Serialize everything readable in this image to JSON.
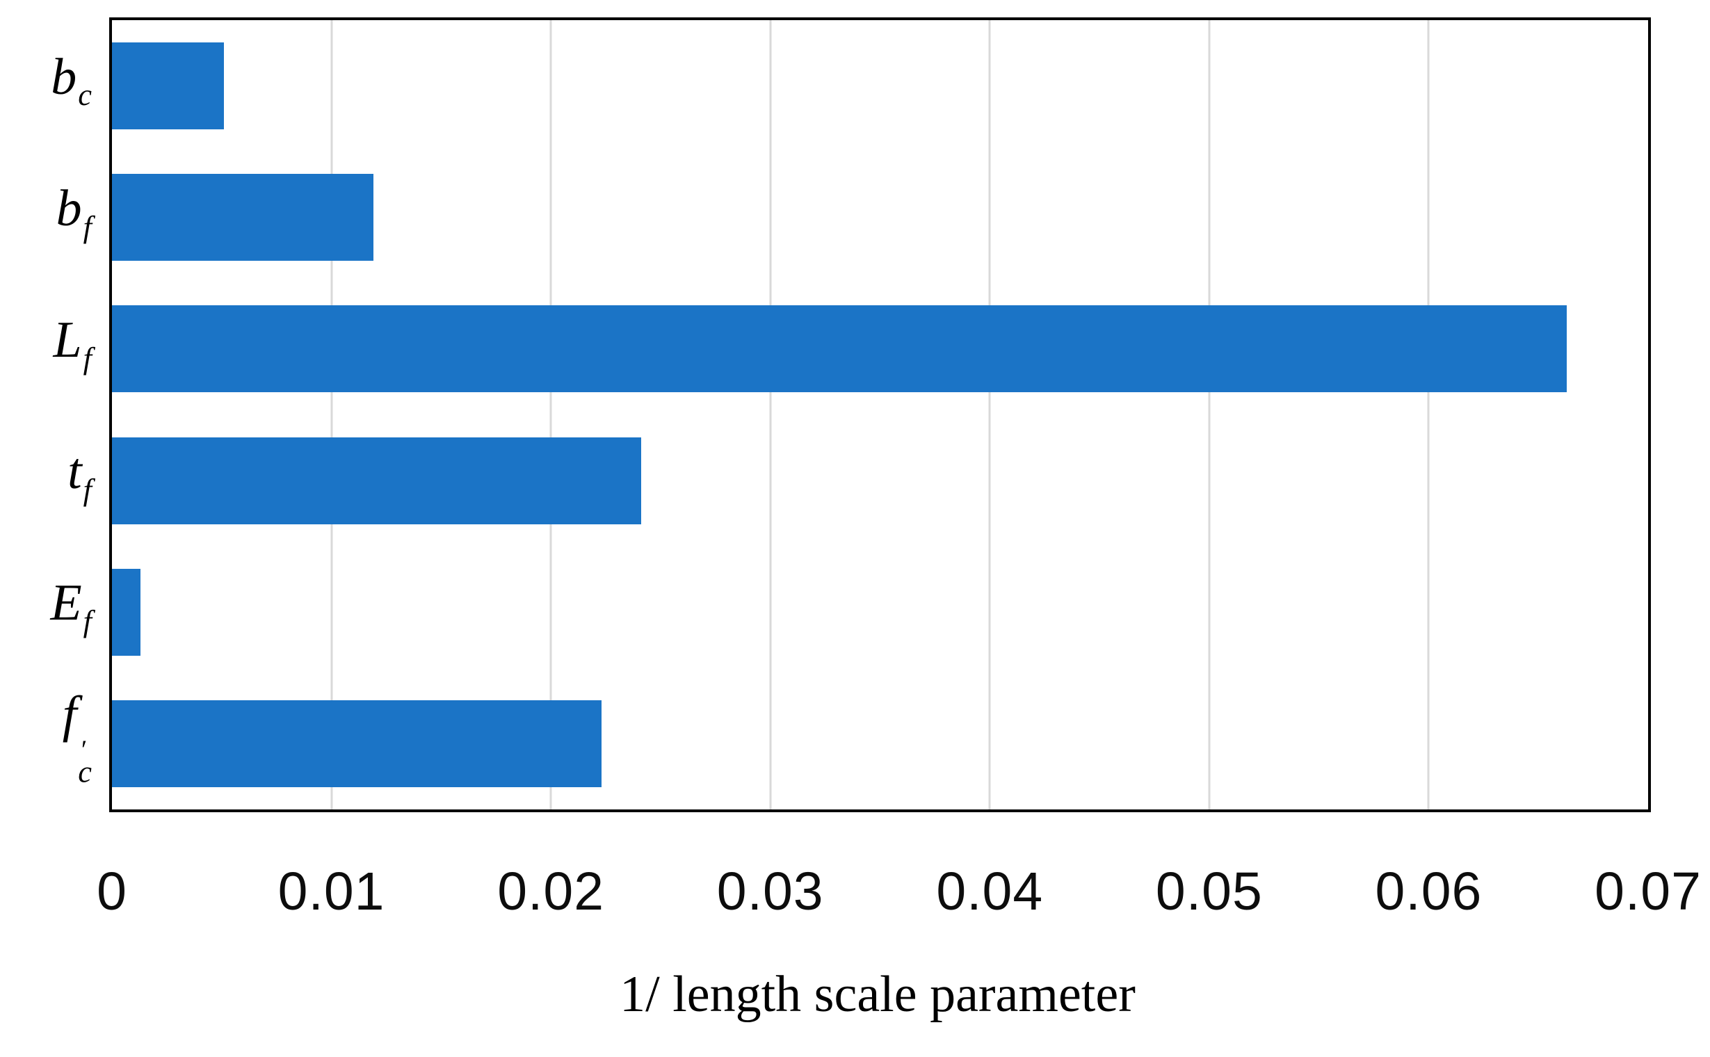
{
  "chart_data": {
    "type": "bar",
    "orientation": "horizontal",
    "title": "",
    "xlabel": "1/ length scale parameter",
    "ylabel": "",
    "categories": [
      "b_c",
      "b_f",
      "L_f",
      "t_f",
      "E_f",
      "f'_c"
    ],
    "category_parts": [
      {
        "base": "b",
        "sub": "c",
        "prime": false
      },
      {
        "base": "b",
        "sub": "f",
        "prime": false
      },
      {
        "base": "L",
        "sub": "f",
        "prime": false
      },
      {
        "base": "t",
        "sub": "f",
        "prime": false
      },
      {
        "base": "E",
        "sub": "f",
        "prime": false
      },
      {
        "base": "f",
        "sub": "c",
        "prime": true
      }
    ],
    "values": [
      0.0051,
      0.0119,
      0.0663,
      0.0241,
      0.0013,
      0.0223
    ],
    "xlim": [
      0,
      0.07
    ],
    "x_ticks": [
      "0",
      "0.01",
      "0.02",
      "0.03",
      "0.04",
      "0.05",
      "0.06",
      "0.07"
    ],
    "grid": "vertical",
    "legend": "none",
    "prime_glyph": "′",
    "colors": {
      "bar": "#1B74C6",
      "gridline": "#D9D9D9",
      "frame": "#000000",
      "background": "#FFFFFF",
      "text": "#000000"
    }
  }
}
